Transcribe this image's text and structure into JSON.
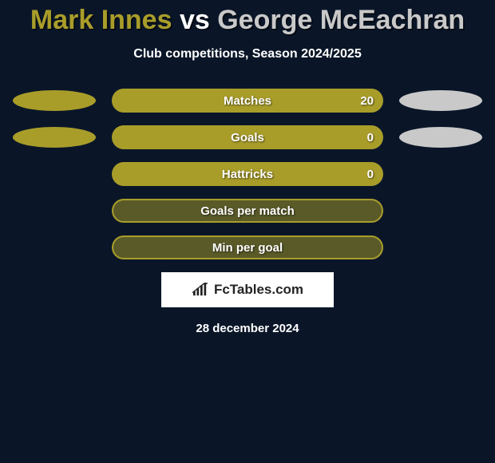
{
  "colors": {
    "background": "#0a1628",
    "player1": "#a99d2a",
    "player2": "#c9c9c9",
    "bar_left": "#a99d2a",
    "bar_right": "#a99d2a",
    "text": "#ffffff",
    "brand_bg": "#ffffff",
    "brand_text": "#232323"
  },
  "title": {
    "player1": "Mark Innes",
    "vs": "vs",
    "player2": "George McEachran"
  },
  "subtitle": "Club competitions, Season 2024/2025",
  "stats": [
    {
      "label": "Matches",
      "left_value": null,
      "right_value": "20",
      "left_fill_pct": 0,
      "right_fill_pct": 100,
      "show_left_ellipse": true,
      "show_right_ellipse": true,
      "border": false
    },
    {
      "label": "Goals",
      "left_value": null,
      "right_value": "0",
      "left_fill_pct": 0,
      "right_fill_pct": 100,
      "show_left_ellipse": true,
      "show_right_ellipse": true,
      "border": false
    },
    {
      "label": "Hattricks",
      "left_value": null,
      "right_value": "0",
      "left_fill_pct": 0,
      "right_fill_pct": 100,
      "show_left_ellipse": false,
      "show_right_ellipse": false,
      "border": false
    },
    {
      "label": "Goals per match",
      "left_value": null,
      "right_value": null,
      "left_fill_pct": 0,
      "right_fill_pct": 0,
      "show_left_ellipse": false,
      "show_right_ellipse": false,
      "border": true
    },
    {
      "label": "Min per goal",
      "left_value": null,
      "right_value": null,
      "left_fill_pct": 0,
      "right_fill_pct": 0,
      "show_left_ellipse": false,
      "show_right_ellipse": false,
      "border": true
    }
  ],
  "brand": "FcTables.com",
  "date": "28 december 2024"
}
